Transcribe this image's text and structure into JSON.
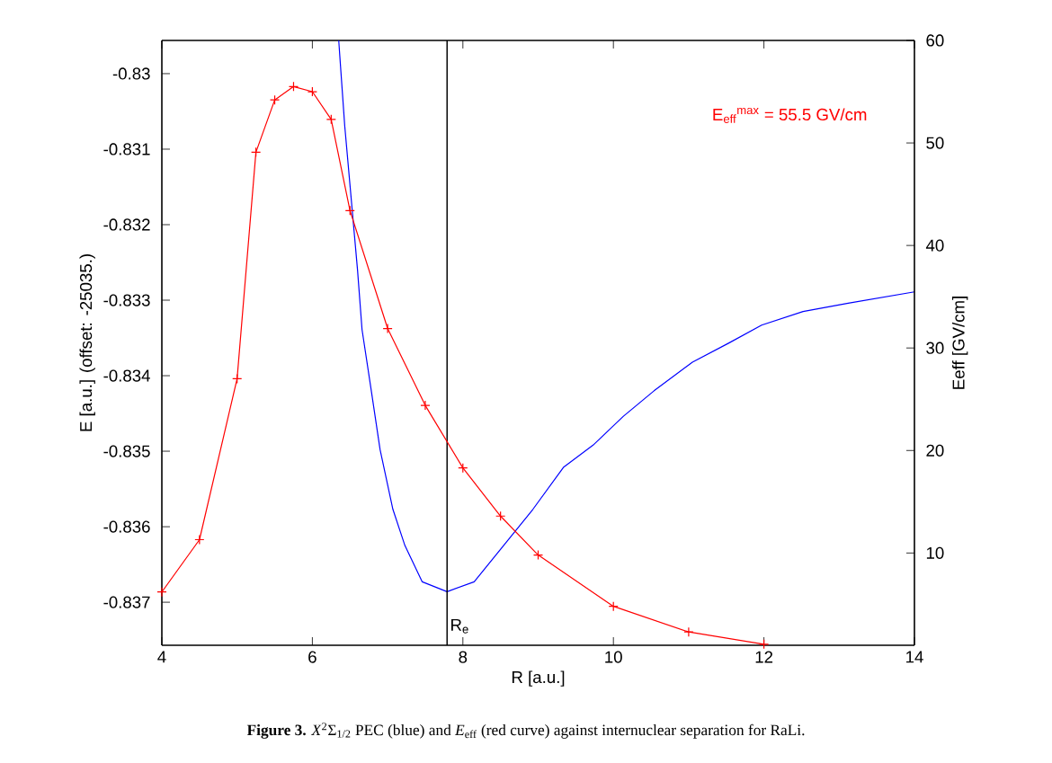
{
  "chart_data": {
    "type": "line",
    "xlabel": "R [a.u.]",
    "ylabel": "E [a.u.] (offset: -25035.)",
    "y2label": "Eeff [GV/cm]",
    "xlim": [
      4,
      14
    ],
    "xticks": [
      4,
      6,
      8,
      10,
      12,
      14
    ],
    "ylim": [
      -0.83757,
      -0.82956
    ],
    "yticks": [
      -0.837,
      -0.836,
      -0.835,
      -0.834,
      -0.833,
      -0.832,
      -0.831,
      -0.83
    ],
    "y2lim": [
      1,
      60
    ],
    "y2ticks": [
      10,
      20,
      30,
      40,
      50,
      60
    ],
    "series": [
      {
        "color": "#0000ff",
        "marker": "none",
        "x": [
          6.35,
          6.43,
          6.6,
          6.66,
          6.78,
          6.9,
          7.07,
          7.23,
          7.46,
          7.79,
          8.15,
          8.54,
          8.93,
          9.34,
          9.73,
          10.13,
          10.54,
          11.05,
          11.53,
          11.97,
          12.52,
          13.12,
          14.0
        ],
        "values": [
          -0.82956,
          -0.83069,
          -0.8326,
          -0.83339,
          -0.83418,
          -0.83498,
          -0.83577,
          -0.83625,
          -0.83673,
          -0.83686,
          -0.83673,
          -0.83625,
          -0.83577,
          -0.83521,
          -0.83492,
          -0.83454,
          -0.8342,
          -0.83382,
          -0.83357,
          -0.83333,
          -0.83315,
          -0.83304,
          -0.83289
        ]
      },
      {
        "color": "#ff0000",
        "marker": "cross",
        "axis": "y2",
        "x": [
          4,
          4.5,
          5,
          5.25,
          5.5,
          5.75,
          6,
          6.25,
          6.5,
          7,
          7.5,
          8,
          8.5,
          9,
          10,
          11,
          12
        ],
        "values": [
          6.2,
          11.3,
          27.0,
          49.1,
          54.2,
          55.5,
          55.0,
          52.3,
          43.4,
          31.9,
          24.4,
          18.3,
          13.6,
          9.8,
          4.8,
          2.3,
          1.1
        ]
      }
    ],
    "ref_lines": [
      {
        "axis": "x",
        "value": 7.79,
        "label": "R$_{e}$",
        "color": "#000000"
      }
    ],
    "annotations": [
      "E$_{eff}$$^{max}$ = 55.5 GV/cm",
      "**Figure 3.** *X*$^{2}$Σ$_{1/2}$ PEC (blue) and *E*$_{eff}$ (red curve) against internuclear separation for RaLi."
    ]
  }
}
